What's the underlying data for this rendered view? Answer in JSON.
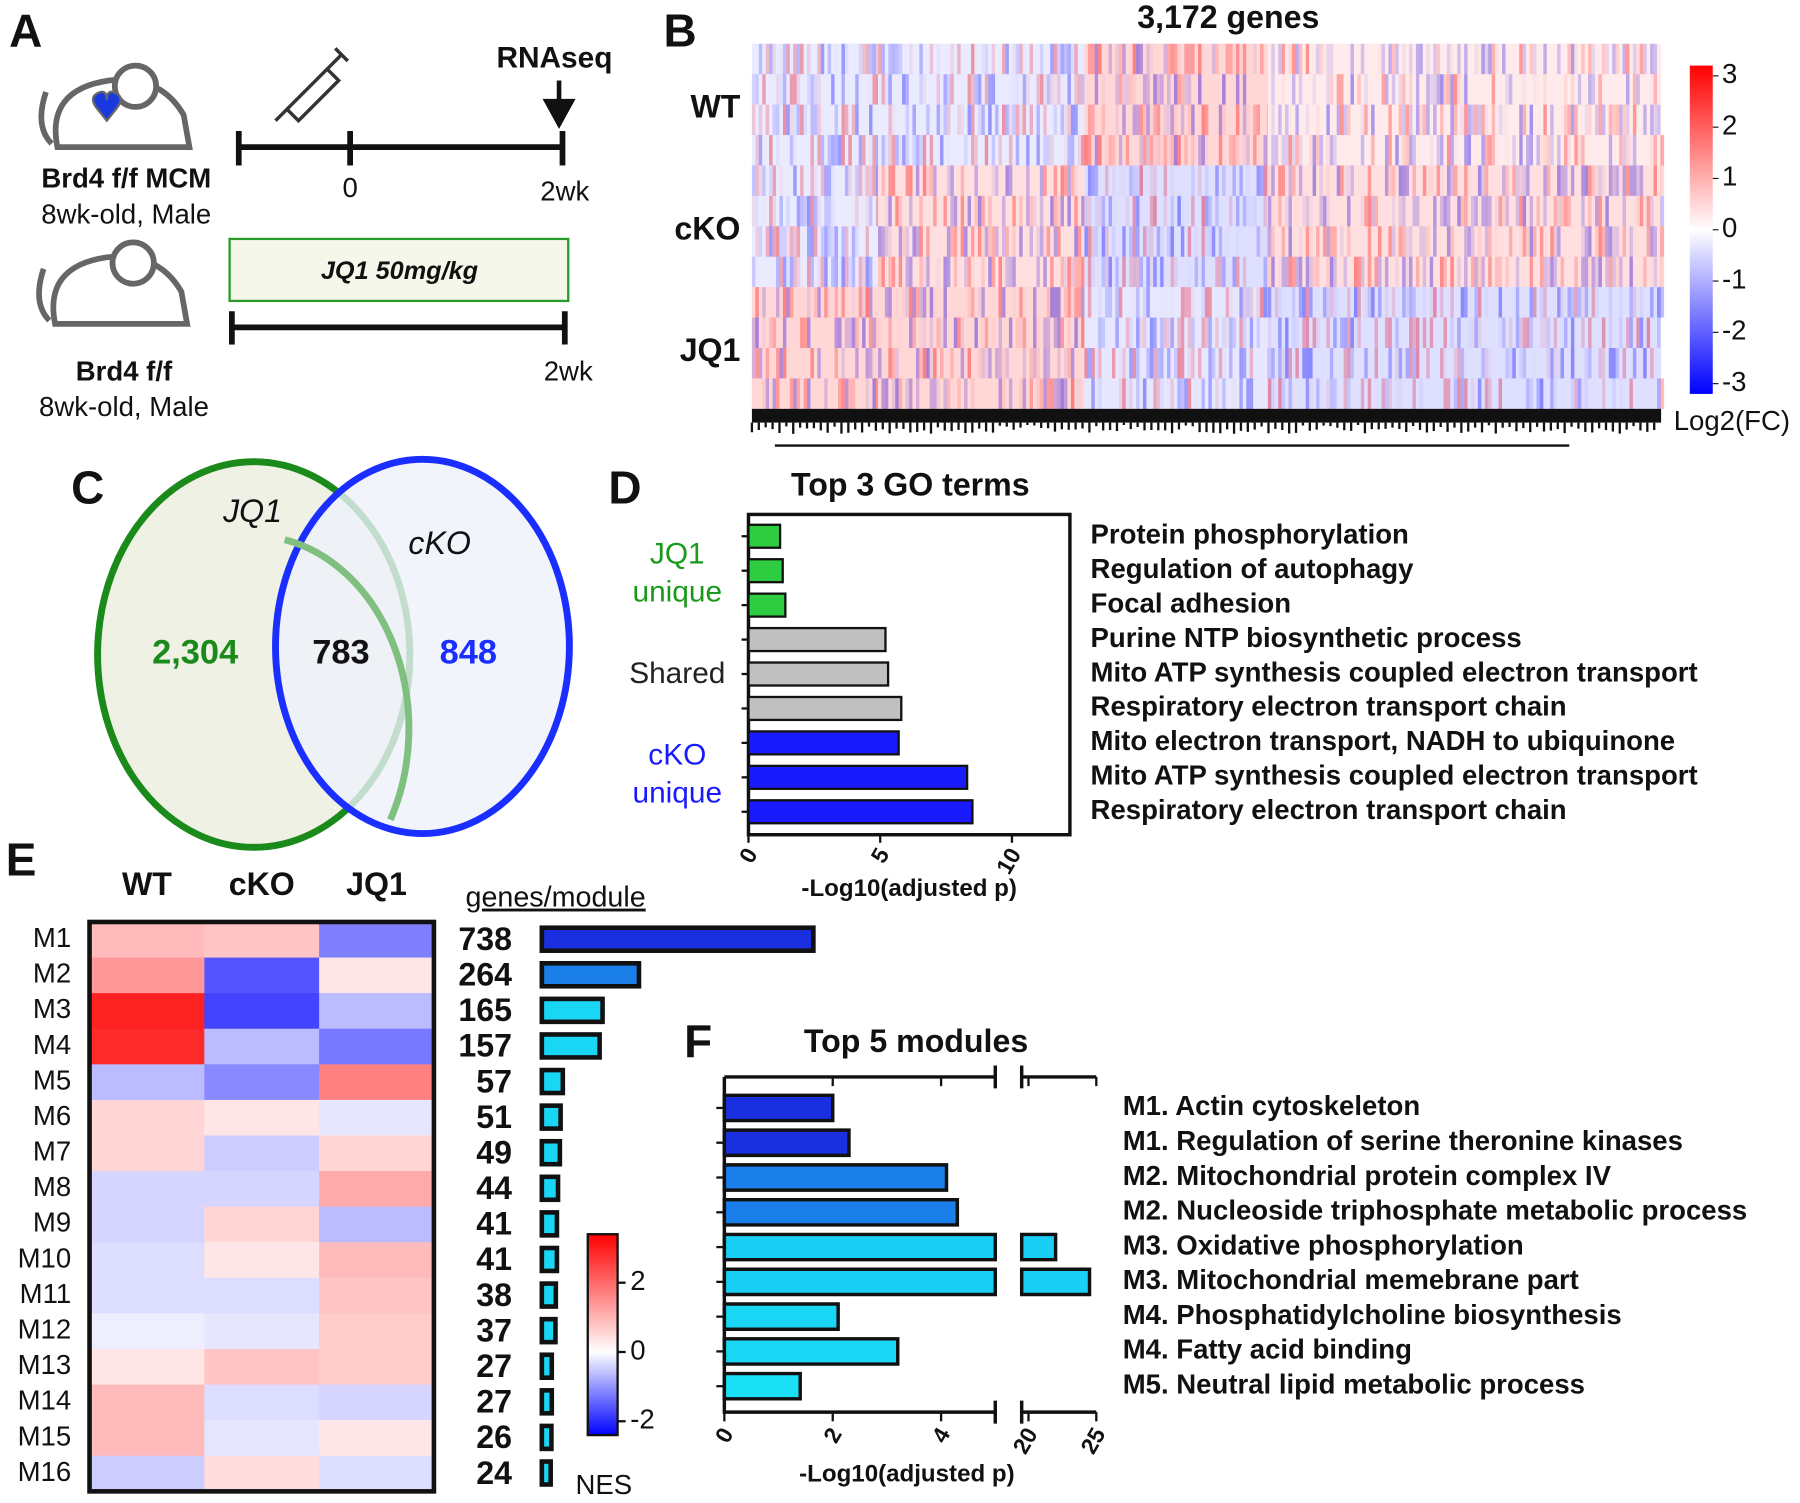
{
  "panel_labels": [
    "A",
    "B",
    "C",
    "D",
    "E",
    "F"
  ],
  "panel_a": {
    "rnaseq": "RNAseq",
    "mouse_1": {
      "name": "Brd4 f/f MCM",
      "desc": "8wk-old, Male"
    },
    "timeline_1": {
      "start": "0",
      "end": "2wk"
    },
    "treatment": "JQ1 50mg/kg",
    "mouse_2": {
      "name": "Brd4 f/f",
      "desc": "8wk-old, Male"
    },
    "timeline_2": {
      "end": "2wk"
    }
  },
  "chart_data": [
    {
      "type": "heatmap_clusters",
      "title": "3,172 genes",
      "rows": [
        "WT",
        "cKO",
        "JQ1"
      ],
      "clusters": [
        {
          "genes": 440,
          "values": [
            -0.5,
            -0.5,
            1.0
          ]
        },
        {
          "genes": 720,
          "values": [
            -0.5,
            0.8,
            1.0
          ]
        },
        {
          "genes": 640,
          "values": [
            1.0,
            -0.8,
            -0.6
          ]
        },
        {
          "genes": 1372,
          "values": [
            0.5,
            0.8,
            -0.8
          ]
        }
      ],
      "colors": {
        "low": "#0000ff",
        "mid": "#ffffff",
        "high": "#ff0000"
      },
      "colorbar": {
        "label": "Log2(FC)",
        "lim": [
          -3.2,
          3.2
        ],
        "ticks": [
          -3,
          -2,
          -1,
          0,
          1,
          2,
          3
        ]
      }
    },
    {
      "type": "venn",
      "sets": [
        "JQ1",
        "cKO"
      ],
      "values": [
        2304,
        783,
        848
      ],
      "value_labels": [
        "2,304",
        "783",
        "848"
      ],
      "colors": [
        "#1a8a1a",
        "#1a2fff"
      ],
      "fills": [
        "#eef1e4",
        "#eef1fa"
      ]
    },
    {
      "type": "barh",
      "title": "Top 3 GO terms",
      "categories": [
        "Protein phosphorylation",
        "Regulation of autophagy",
        "Focal adhesion",
        "Purine NTP biosynthetic process",
        "Mito ATP synthesis coupled electron transport",
        "Respiratory electron transport chain",
        "Mito electron transport, NADH to ubiquinone",
        "Mito ATP synthesis coupled electron transport",
        "Respiratory electron transport chain"
      ],
      "values": [
        1.2,
        1.3,
        1.4,
        5.2,
        5.3,
        5.8,
        5.7,
        8.3,
        8.5
      ],
      "colors": [
        "#2ecc40",
        "#2ecc40",
        "#2ecc40",
        "#c0c0c0",
        "#c0c0c0",
        "#c0c0c0",
        "#1a1aff",
        "#1a1aff",
        "#1a1aff"
      ],
      "groups": [
        {
          "lines": [
            "JQ1",
            "unique"
          ],
          "color": "#1a9a1a"
        },
        {
          "lines": [
            "Shared"
          ],
          "color": "#222222"
        },
        {
          "lines": [
            "cKO",
            "unique"
          ],
          "color": "#1a1aff"
        }
      ],
      "xlim": [
        0,
        12.2
      ],
      "xticks": [
        0,
        5,
        10
      ],
      "xlabel": "-Log10(adjusted p)"
    },
    {
      "type": "heatmap",
      "columns": [
        "WT",
        "cKO",
        "JQ1"
      ],
      "rows": [
        "M1",
        "M2",
        "M3",
        "M4",
        "M5",
        "M6",
        "M7",
        "M8",
        "M9",
        "M10",
        "M11",
        "M12",
        "M13",
        "M14",
        "M15",
        "M16"
      ],
      "values": [
        [
          0.8,
          0.7,
          -1.5
        ],
        [
          1.2,
          -2.0,
          0.3
        ],
        [
          2.6,
          -2.2,
          -0.8
        ],
        [
          2.5,
          -0.8,
          -1.6
        ],
        [
          -0.8,
          -1.4,
          1.5
        ],
        [
          0.5,
          0.3,
          -0.3
        ],
        [
          0.5,
          -0.6,
          0.5
        ],
        [
          -0.5,
          -0.5,
          1.0
        ],
        [
          -0.5,
          0.5,
          -0.8
        ],
        [
          -0.4,
          0.3,
          0.8
        ],
        [
          -0.4,
          -0.4,
          0.7
        ],
        [
          -0.2,
          -0.3,
          0.6
        ],
        [
          0.3,
          0.7,
          0.6
        ],
        [
          0.8,
          -0.4,
          -0.5
        ],
        [
          0.8,
          -0.3,
          0.3
        ],
        [
          -0.6,
          0.4,
          -0.4
        ]
      ],
      "colors": {
        "low": "#0000ff",
        "mid": "#ffffff",
        "high": "#ff0000"
      },
      "colorbar": {
        "label": "NES",
        "lim": [
          -2.4,
          3.4
        ],
        "ticks": [
          -2,
          0,
          2
        ]
      }
    },
    {
      "type": "barh_plain",
      "title": "genes/module",
      "values": [
        738,
        264,
        165,
        157,
        57,
        51,
        49,
        44,
        41,
        41,
        38,
        37,
        27,
        27,
        26,
        24
      ],
      "colors": [
        "#1a2fe0",
        "#1a7fe8",
        "#1ad6f5",
        "#1ad6f5",
        "#1ad6f5",
        "#1ad6f5",
        "#1ad6f5",
        "#1ad6f5",
        "#1ad6f5",
        "#1ad6f5",
        "#1ad6f5",
        "#1ad6f5",
        "#1ad6f5",
        "#1ad6f5",
        "#1ad6f5",
        "#1ad6f5"
      ],
      "xlim": [
        0,
        780
      ]
    },
    {
      "type": "barh_broken",
      "title": "Top 5 modules",
      "categories": [
        "M1. Actin cytoskeleton",
        "M1. Regulation of serine theronine kinases",
        "M2. Mitochondrial protein complex IV",
        "M2. Nucleoside triphosphate metabolic process",
        "M3. Oxidative phosphorylation",
        "M3. Mitochondrial memebrane part",
        "M4. Phosphatidylcholine biosynthesis",
        "M4. Fatty acid binding",
        "M5. Neutral lipid metabolic process"
      ],
      "values": [
        2.0,
        2.3,
        4.1,
        4.3,
        22,
        24.5,
        2.1,
        3.2,
        1.4
      ],
      "colors": [
        "#1a2fe0",
        "#1a2fe0",
        "#1a7fe8",
        "#1a7fe8",
        "#1acff5",
        "#1acff5",
        "#1ad6f5",
        "#1ad6f5",
        "#1ae0f5"
      ],
      "x_segments": [
        [
          0,
          5
        ],
        [
          19.5,
          25
        ]
      ],
      "xticks": [
        [
          0,
          2,
          4
        ],
        [
          20,
          25
        ]
      ],
      "xlabel": "-Log10(adjusted p)"
    }
  ]
}
